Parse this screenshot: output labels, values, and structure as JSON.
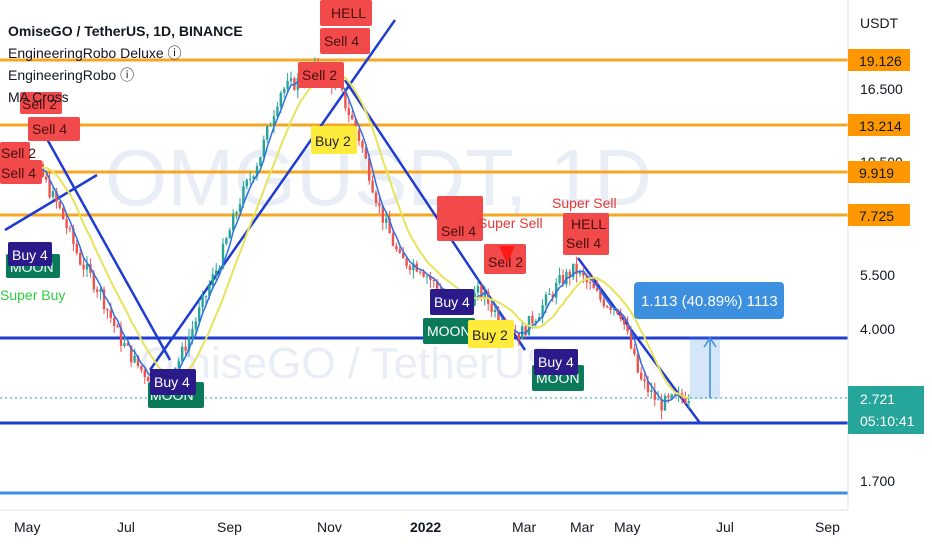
{
  "header": {
    "title": "OmiseGO / TetherUS, 1D, BINANCE",
    "indicators": [
      "EngineeringRobo Deluxe ⓘ",
      "EngineeringRobo ⓘ",
      "MA Cross"
    ]
  },
  "watermark": {
    "symbol": "OMGUSDT, 1D",
    "name": "OmiseGO / TetherUS"
  },
  "price_axis": {
    "unit": "USDT",
    "ticks": [
      "16.500",
      "10.500",
      "5.500",
      "4.000",
      "1.700"
    ],
    "level_tags": [
      "19.126",
      "13.214",
      "9.919",
      "7.725"
    ],
    "current_price": "2.721",
    "countdown": "05:10:41"
  },
  "time_axis": {
    "ticks": [
      "May",
      "Jul",
      "Sep",
      "Nov",
      "2022",
      "Mar",
      "Mar",
      "May",
      "Jul",
      "Sep"
    ]
  },
  "measure_label": "1.113 (40.89%) 1113",
  "signal_labels": {
    "sell4": "Sell 4",
    "sell2": "Sell 2",
    "buy4": "Buy 4",
    "buy2": "Buy 2",
    "moon": "MOON",
    "hell": "HELL",
    "super_sell": "Super Sell",
    "super_buy": "Super Buy"
  },
  "colors": {
    "background": "#ffffff",
    "level_line": "#f5a623",
    "trend_line": "#1e3ccf",
    "candle_up": "#26a69a",
    "candle_down": "#ef5350",
    "sell_label": "#f24a4a",
    "buy_label": "#2b1b8a",
    "buy2_label": "#ffeb3b",
    "moon_label": "#0a7a5a",
    "level_tag": "#ff9800",
    "current_tag": "#26a69a",
    "measure": "#3d8fe0"
  },
  "chart_data": {
    "type": "candlestick",
    "symbol": "OmiseGO / TetherUS",
    "interval": "1D",
    "exchange": "BINANCE",
    "ylabel": "USDT",
    "y_scale": "log",
    "y_ticks": [
      16.5,
      10.5,
      5.5,
      4.0,
      1.7
    ],
    "x_ticks": [
      "May",
      "Jul",
      "Sep",
      "Nov",
      "2022",
      "Mar",
      "Mar",
      "May",
      "Jul",
      "Sep"
    ],
    "horizontal_levels": [
      19.126,
      13.214,
      9.919,
      7.725
    ],
    "support_levels": [
      3.9,
      2.5
    ],
    "current_price": 2.721,
    "countdown": "05:10:41",
    "price_path": [
      [
        0,
        9.5
      ],
      [
        20,
        11
      ],
      [
        40,
        10
      ],
      [
        60,
        8
      ],
      [
        80,
        6
      ],
      [
        100,
        5
      ],
      [
        120,
        3.8
      ],
      [
        140,
        3.2
      ],
      [
        160,
        2.9
      ],
      [
        180,
        3.4
      ],
      [
        200,
        4.5
      ],
      [
        220,
        6
      ],
      [
        240,
        8.5
      ],
      [
        260,
        11
      ],
      [
        280,
        16
      ],
      [
        300,
        17
      ],
      [
        320,
        18.5
      ],
      [
        340,
        16
      ],
      [
        360,
        12
      ],
      [
        380,
        8
      ],
      [
        400,
        6
      ],
      [
        420,
        5.8
      ],
      [
        440,
        5
      ],
      [
        460,
        4.6
      ],
      [
        480,
        5
      ],
      [
        500,
        4.3
      ],
      [
        520,
        3.9
      ],
      [
        540,
        4.5
      ],
      [
        560,
        5.3
      ],
      [
        575,
        5.7
      ],
      [
        600,
        4.8
      ],
      [
        620,
        4.5
      ],
      [
        640,
        3
      ],
      [
        660,
        2.6
      ],
      [
        680,
        2.7
      ],
      [
        690,
        2.75
      ]
    ],
    "signals": [
      {
        "type": "Sell 2",
        "x": 30,
        "price": 14.5
      },
      {
        "type": "Sell 4",
        "x": 48,
        "price": 12.5
      },
      {
        "type": "Sell 2",
        "x": 10,
        "price": 11
      },
      {
        "type": "Sell 4",
        "x": 12,
        "price": 9.5
      },
      {
        "type": "Buy 4",
        "x": 28,
        "price": 6.5
      },
      {
        "type": "MOON",
        "x": 30,
        "price": 5.8
      },
      {
        "type": "Super Buy",
        "x": 30,
        "price": 4.9
      },
      {
        "type": "Buy 4",
        "x": 172,
        "price": 2.9
      },
      {
        "type": "MOON",
        "x": 176,
        "price": 2.6
      },
      {
        "type": "HELL",
        "x": 345,
        "price": 26
      },
      {
        "type": "Sell 4",
        "x": 343,
        "price": 22
      },
      {
        "type": "Sell 2",
        "x": 320,
        "price": 16.5
      },
      {
        "type": "Buy 2",
        "x": 333,
        "price": 13.5
      },
      {
        "type": "Sell 4",
        "x": 460,
        "price": 7.4
      },
      {
        "type": "Super Sell",
        "x": 510,
        "price": 7.3
      },
      {
        "type": "Sell 2",
        "x": 505,
        "price": 5.8
      },
      {
        "type": "Buy 4",
        "x": 452,
        "price": 4.4
      },
      {
        "type": "MOON",
        "x": 452,
        "price": 4.0
      },
      {
        "type": "Buy 2",
        "x": 490,
        "price": 3.95
      },
      {
        "type": "Super Sell",
        "x": 584,
        "price": 7.7
      },
      {
        "type": "HELL",
        "x": 586,
        "price": 7.2
      },
      {
        "type": "Sell 4",
        "x": 585,
        "price": 6.6
      },
      {
        "type": "Buy 4",
        "x": 556,
        "price": 3.5
      },
      {
        "type": "MOON",
        "x": 556,
        "price": 3.2
      }
    ],
    "measure": {
      "text": "1.113 (40.89%) 1113"
    }
  }
}
